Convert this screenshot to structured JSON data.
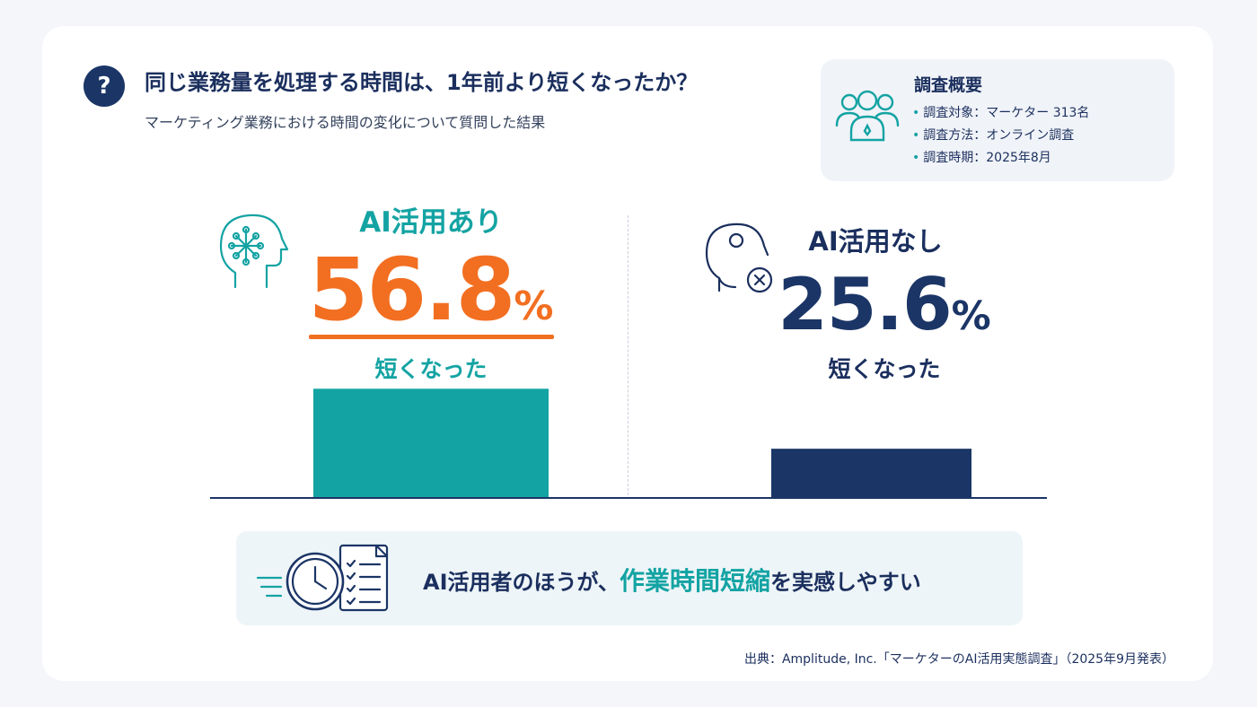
{
  "header": {
    "title": "同じ業務量を処理する時間は、1年前より短くなったか？",
    "subtitle": "マーケティング業務における時間の変化について質問した結果"
  },
  "survey": {
    "title": "調査概要",
    "items": [
      "調査対象：マーケター 313名",
      "調査方法：オンライン調査",
      "調査時期：2025年8月"
    ]
  },
  "groups": [
    {
      "label": "AI活用あり",
      "value_text": "56.8",
      "unit": "%",
      "caption": "短くなった"
    },
    {
      "label": "AI活用なし",
      "value_text": "25.6",
      "unit": "%",
      "caption": "短くなった"
    }
  ],
  "summary": {
    "prefix": "AI活用者のほうが、",
    "highlight": "作業時間短縮",
    "suffix": "を実感しやすい"
  },
  "source": "出典：Amplitude, Inc.「マーケターのAI活用実態調査」（2025年9月発表）",
  "colors": {
    "teal": "#14a3a3",
    "orange": "#f26f21",
    "navy": "#1b3566"
  },
  "chart_data": {
    "type": "bar",
    "categories": [
      "AI活用あり",
      "AI活用なし"
    ],
    "values": [
      56.8,
      25.6
    ],
    "ylabel": "",
    "xlabel": "",
    "ylim": [
      0,
      140
    ],
    "grid": false,
    "bar_colors": [
      "#14a3a3",
      "#1b3566"
    ]
  }
}
